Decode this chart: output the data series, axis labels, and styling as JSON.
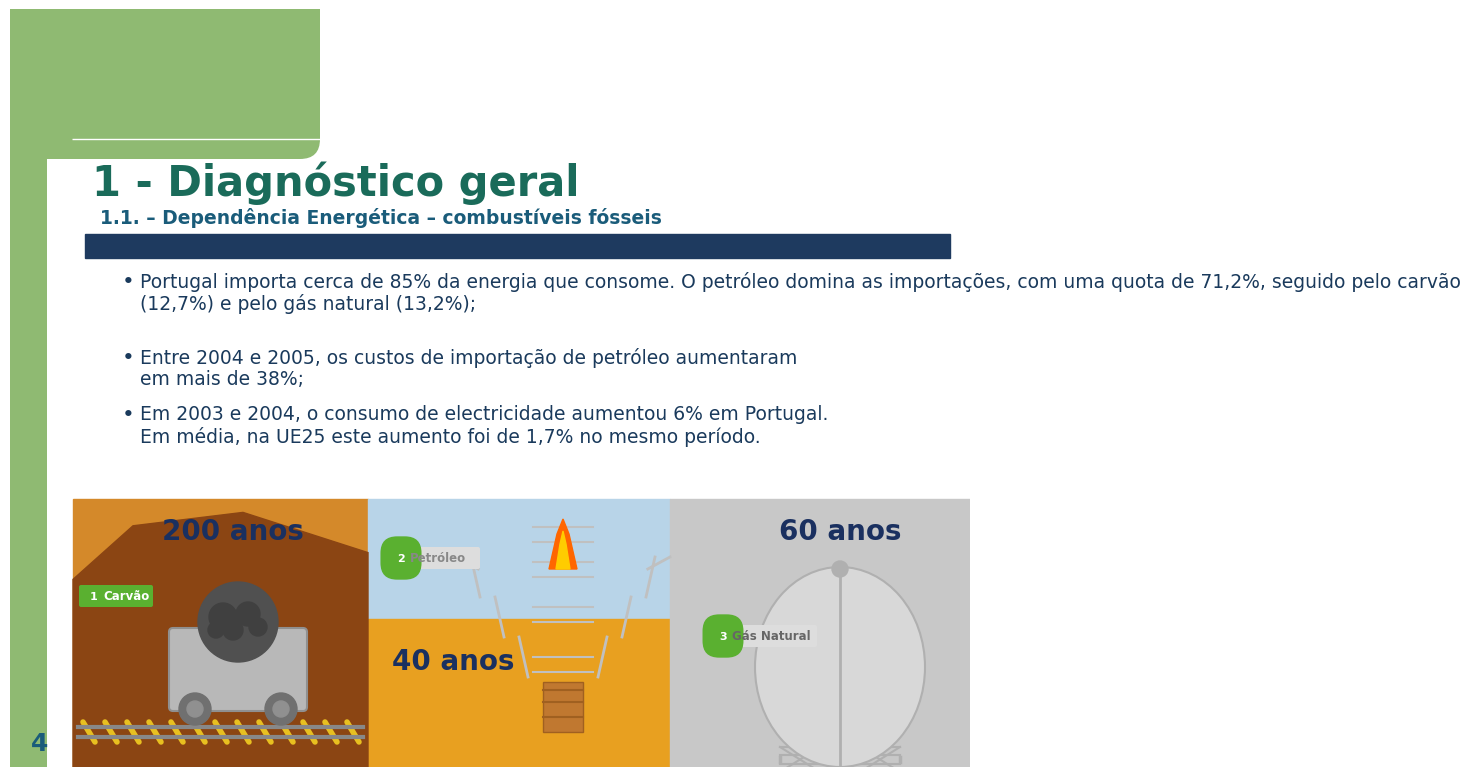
{
  "bg_color": "#ffffff",
  "left_bar_color": "#8fba72",
  "title_main": "1 - Diagnóstico geral",
  "title_sub": "1.1. – Dependência Energética – combustíveis fósseis",
  "title_color": "#1a6b5a",
  "subtitle_color": "#1a5c7a",
  "divider_color": "#1e3a5f",
  "bullet_color": "#1a3a5c",
  "bullet_text_color": "#1a3a5c",
  "bullet1_line1": "Portugal importa cerca de 85% da energia que consome. O petróleo domina as importações, com uma quota de 71,2%, seguido pelo carvão",
  "bullet1_line2": "(12,7%) e pelo gás natural (13,2%);",
  "bullet2_line1": "Entre 2004 e 2005, os custos de importação de petróleo aumentaram",
  "bullet2_line2": "em mais de 38%;",
  "bullet3_line1": "Em 2003 e 2004, o consumo de electricidade aumentou 6% em Portugal.",
  "bullet3_line2": "Em média, na UE25 este aumento foi de 1,7% no mesmo período.",
  "page_number": "4",
  "panel1_label": "200 anos",
  "panel2_label": "40 anos",
  "panel3_label": "60 anos",
  "panel1_sublabel": "Carvão",
  "panel2_sublabel": "Petróleo",
  "panel3_sublabel": "Gás Natural",
  "panel1_color": "#d4892a",
  "panel2_color_top": "#b8d4e8",
  "panel2_color_bottom": "#e8a020",
  "panel3_color": "#c8c8c8",
  "badge_color": "#5ab030",
  "label_color_dark": "#1a3060",
  "label_color_panel2": "#1a3060",
  "petróleo_label_color": "#aaaaaa"
}
